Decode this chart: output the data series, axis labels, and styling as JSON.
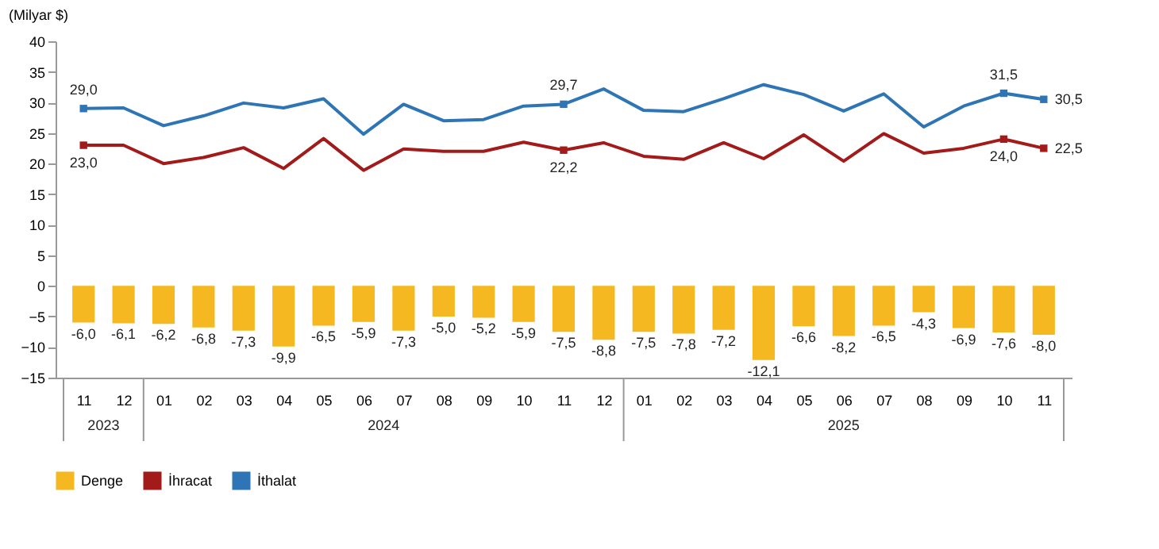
{
  "chart_data": {
    "type": "bar",
    "ylabel": "(Milyar $)",
    "categories": [
      "11",
      "12",
      "01",
      "02",
      "03",
      "04",
      "05",
      "06",
      "07",
      "08",
      "09",
      "10",
      "11",
      "12",
      "01",
      "02",
      "03",
      "04",
      "05",
      "06",
      "07",
      "08",
      "09",
      "10",
      "11"
    ],
    "annotations": [
      "2023",
      "2024",
      "2025"
    ],
    "series": [
      {
        "name": "Denge",
        "type": "bar",
        "color": "#f5b820",
        "values": [
          -6.0,
          -6.1,
          -6.2,
          -6.8,
          -7.3,
          -9.9,
          -6.5,
          -5.9,
          -7.3,
          -5.0,
          -5.2,
          -5.9,
          -7.5,
          -8.8,
          -7.5,
          -7.8,
          -7.2,
          -12.1,
          -6.6,
          -8.2,
          -6.5,
          -4.3,
          -6.9,
          -7.6,
          -8.0
        ],
        "value_labels": [
          "-6,0",
          "-6,1",
          "-6,2",
          "-6,8",
          "-7,3",
          "-9,9",
          "-6,5",
          "-5,9",
          "-7,3",
          "-5,0",
          "-5,2",
          "-5,9",
          "-7,5",
          "-8,8",
          "-7,5",
          "-7,8",
          "-7,2",
          "-12,1",
          "-6,6",
          "-8,2",
          "-6,5",
          "-4,3",
          "-6,9",
          "-7,6",
          "-8,0"
        ]
      },
      {
        "name": "İhracat",
        "type": "line",
        "color": "#a31a1a",
        "values": [
          23.0,
          23.0,
          20.0,
          21.0,
          22.6,
          19.2,
          24.1,
          18.9,
          22.4,
          22.0,
          22.0,
          23.5,
          22.2,
          23.4,
          21.2,
          20.7,
          23.4,
          20.8,
          24.7,
          20.4,
          24.9,
          21.7,
          22.5,
          24.0,
          22.5
        ],
        "value_labels": [
          "23,0",
          null,
          null,
          null,
          null,
          null,
          null,
          null,
          null,
          null,
          null,
          null,
          "22,2",
          null,
          null,
          null,
          null,
          null,
          null,
          null,
          null,
          null,
          null,
          "24,0",
          "22,5"
        ]
      },
      {
        "name": "İthalat",
        "type": "line",
        "color": "#2e75b6",
        "values": [
          29.0,
          29.1,
          26.2,
          27.8,
          29.9,
          29.1,
          30.6,
          24.8,
          29.7,
          27.0,
          27.2,
          29.4,
          29.7,
          32.2,
          28.7,
          28.5,
          30.6,
          32.9,
          31.3,
          28.6,
          31.4,
          26.0,
          29.4,
          31.5,
          30.5
        ],
        "value_labels": [
          "29,0",
          null,
          null,
          null,
          null,
          null,
          null,
          null,
          null,
          null,
          null,
          null,
          "29,7",
          null,
          null,
          null,
          null,
          null,
          null,
          null,
          null,
          null,
          null,
          "31,5",
          "30,5"
        ]
      }
    ],
    "ylim": [
      -15,
      40
    ],
    "yticks": [
      -15,
      -10,
      -5,
      0,
      5,
      10,
      15,
      20,
      25,
      30,
      35,
      40
    ],
    "grid": false,
    "legend": "bottom",
    "line_style": "solid"
  }
}
